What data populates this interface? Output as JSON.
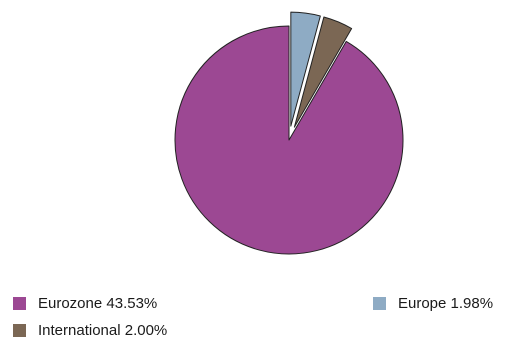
{
  "chart_data": {
    "type": "pie",
    "title": "",
    "slices": [
      {
        "label": "Eurozone 43.53%",
        "value": 43.53,
        "color": "#9c4893"
      },
      {
        "label": "International 2.00%",
        "value": 2.0,
        "color": "#7b6754"
      },
      {
        "label": "Europe 1.98%",
        "value": 1.98,
        "color": "#8eabc4"
      }
    ],
    "exploded": [
      "International 2.00%",
      "Europe 1.98%"
    ],
    "legend_position": "bottom"
  }
}
